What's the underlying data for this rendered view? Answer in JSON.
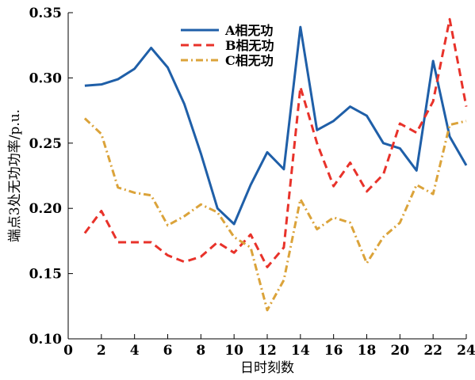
{
  "chart_data": {
    "type": "line",
    "xlabel": "日时刻数",
    "ylabel": "端点3处无功功率/p.u.",
    "xlim": [
      0,
      24
    ],
    "ylim": [
      0.1,
      0.35
    ],
    "xticks": [
      "0",
      "2",
      "4",
      "6",
      "8",
      "10",
      "12",
      "14",
      "16",
      "18",
      "20",
      "22",
      "24"
    ],
    "yticks": [
      "0.10",
      "0.15",
      "0.20",
      "0.25",
      "0.30",
      "0.35"
    ],
    "x": [
      1,
      2,
      3,
      4,
      5,
      6,
      7,
      8,
      9,
      10,
      11,
      12,
      13,
      14,
      15,
      16,
      17,
      18,
      19,
      20,
      21,
      22,
      23,
      24
    ],
    "legend_position": "top-center",
    "grid": false,
    "series": [
      {
        "name": "A相无功",
        "color": "#1f5fa8",
        "dash": "solid",
        "values": [
          0.294,
          0.295,
          0.299,
          0.307,
          0.323,
          0.308,
          0.28,
          0.242,
          0.2,
          0.188,
          0.218,
          0.243,
          0.23,
          0.339,
          0.26,
          0.267,
          0.278,
          0.271,
          0.25,
          0.246,
          0.229,
          0.313,
          0.255,
          0.233
        ]
      },
      {
        "name": "B相无功",
        "color": "#e8322a",
        "dash": "dashed",
        "values": [
          0.181,
          0.198,
          0.174,
          0.174,
          0.174,
          0.164,
          0.159,
          0.163,
          0.174,
          0.166,
          0.18,
          0.155,
          0.17,
          0.293,
          0.25,
          0.217,
          0.235,
          0.213,
          0.226,
          0.265,
          0.258,
          0.282,
          0.345,
          0.278
        ]
      },
      {
        "name": "C相无功",
        "color": "#dba33a",
        "dash": "dashdot",
        "values": [
          0.269,
          0.257,
          0.216,
          0.212,
          0.21,
          0.187,
          0.194,
          0.203,
          0.197,
          0.178,
          0.17,
          0.122,
          0.145,
          0.207,
          0.184,
          0.193,
          0.189,
          0.158,
          0.178,
          0.189,
          0.218,
          0.211,
          0.264,
          0.267
        ]
      }
    ]
  }
}
